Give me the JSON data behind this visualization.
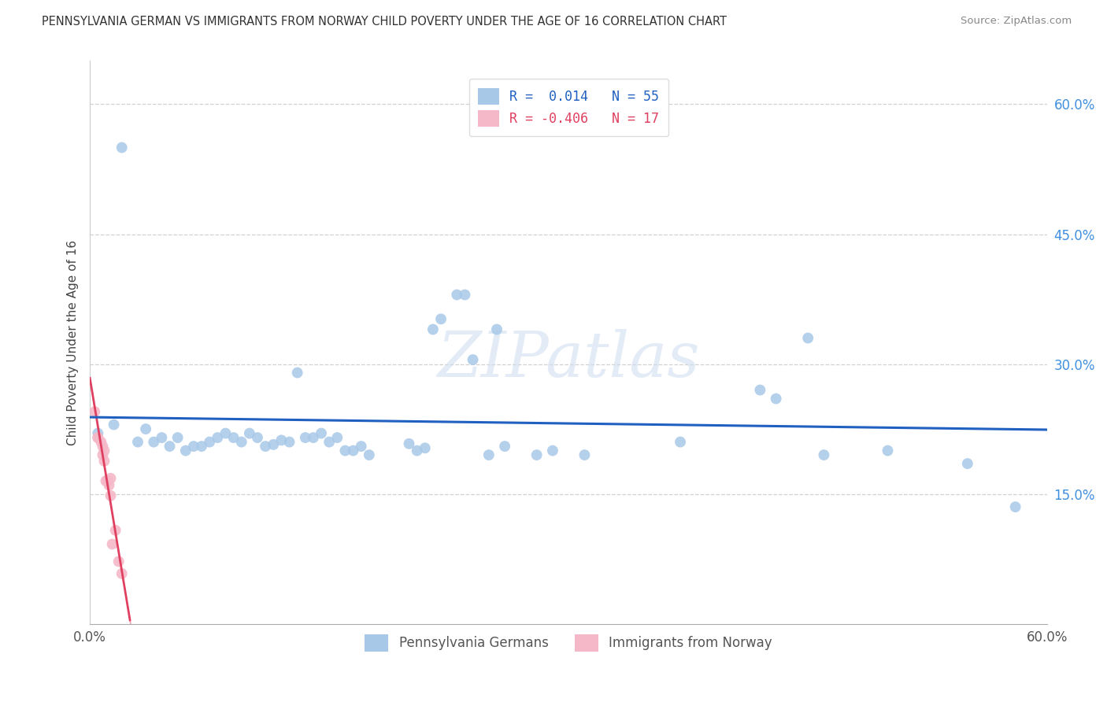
{
  "title": "PENNSYLVANIA GERMAN VS IMMIGRANTS FROM NORWAY CHILD POVERTY UNDER THE AGE OF 16 CORRELATION CHART",
  "source": "Source: ZipAtlas.com",
  "ylabel": "Child Poverty Under the Age of 16",
  "xmin": 0.0,
  "xmax": 0.6,
  "ymin": 0.0,
  "ymax": 0.65,
  "y_ticks": [
    0.15,
    0.3,
    0.45,
    0.6
  ],
  "y_tick_labels": [
    "15.0%",
    "30.0%",
    "45.0%",
    "60.0%"
  ],
  "x_ticks": [
    0.0,
    0.6
  ],
  "x_tick_labels": [
    "0.0%",
    "60.0%"
  ],
  "blue_R": "0.014",
  "blue_N": "55",
  "pink_R": "-0.406",
  "pink_N": "17",
  "blue_color": "#a8c8e8",
  "pink_color": "#f4b8c8",
  "blue_line_color": "#2060c0",
  "pink_line_color": "#e04060",
  "tick_label_color": "#4090e0",
  "blue_scatter": [
    [
      0.005,
      0.22
    ],
    [
      0.015,
      0.23
    ],
    [
      0.02,
      0.55
    ],
    [
      0.03,
      0.21
    ],
    [
      0.035,
      0.225
    ],
    [
      0.04,
      0.21
    ],
    [
      0.045,
      0.215
    ],
    [
      0.05,
      0.205
    ],
    [
      0.055,
      0.215
    ],
    [
      0.06,
      0.2
    ],
    [
      0.065,
      0.205
    ],
    [
      0.07,
      0.205
    ],
    [
      0.075,
      0.21
    ],
    [
      0.08,
      0.215
    ],
    [
      0.085,
      0.22
    ],
    [
      0.09,
      0.215
    ],
    [
      0.095,
      0.21
    ],
    [
      0.1,
      0.22
    ],
    [
      0.105,
      0.215
    ],
    [
      0.11,
      0.205
    ],
    [
      0.115,
      0.207
    ],
    [
      0.12,
      0.212
    ],
    [
      0.125,
      0.21
    ],
    [
      0.13,
      0.29
    ],
    [
      0.135,
      0.215
    ],
    [
      0.14,
      0.215
    ],
    [
      0.145,
      0.22
    ],
    [
      0.15,
      0.21
    ],
    [
      0.155,
      0.215
    ],
    [
      0.16,
      0.2
    ],
    [
      0.165,
      0.2
    ],
    [
      0.17,
      0.205
    ],
    [
      0.175,
      0.195
    ],
    [
      0.2,
      0.208
    ],
    [
      0.205,
      0.2
    ],
    [
      0.21,
      0.203
    ],
    [
      0.215,
      0.34
    ],
    [
      0.22,
      0.352
    ],
    [
      0.23,
      0.38
    ],
    [
      0.235,
      0.38
    ],
    [
      0.24,
      0.305
    ],
    [
      0.25,
      0.195
    ],
    [
      0.255,
      0.34
    ],
    [
      0.26,
      0.205
    ],
    [
      0.28,
      0.195
    ],
    [
      0.29,
      0.2
    ],
    [
      0.31,
      0.195
    ],
    [
      0.37,
      0.21
    ],
    [
      0.42,
      0.27
    ],
    [
      0.43,
      0.26
    ],
    [
      0.45,
      0.33
    ],
    [
      0.46,
      0.195
    ],
    [
      0.5,
      0.2
    ],
    [
      0.55,
      0.185
    ],
    [
      0.58,
      0.135
    ]
  ],
  "pink_scatter": [
    [
      0.003,
      0.245
    ],
    [
      0.005,
      0.215
    ],
    [
      0.005,
      0.215
    ],
    [
      0.007,
      0.21
    ],
    [
      0.008,
      0.205
    ],
    [
      0.008,
      0.195
    ],
    [
      0.009,
      0.2
    ],
    [
      0.009,
      0.188
    ],
    [
      0.01,
      0.165
    ],
    [
      0.011,
      0.165
    ],
    [
      0.012,
      0.16
    ],
    [
      0.013,
      0.148
    ],
    [
      0.013,
      0.168
    ],
    [
      0.014,
      0.092
    ],
    [
      0.016,
      0.108
    ],
    [
      0.018,
      0.072
    ],
    [
      0.02,
      0.058
    ]
  ],
  "watermark": "ZIPatlas",
  "background_color": "#ffffff",
  "grid_color": "#cccccc"
}
